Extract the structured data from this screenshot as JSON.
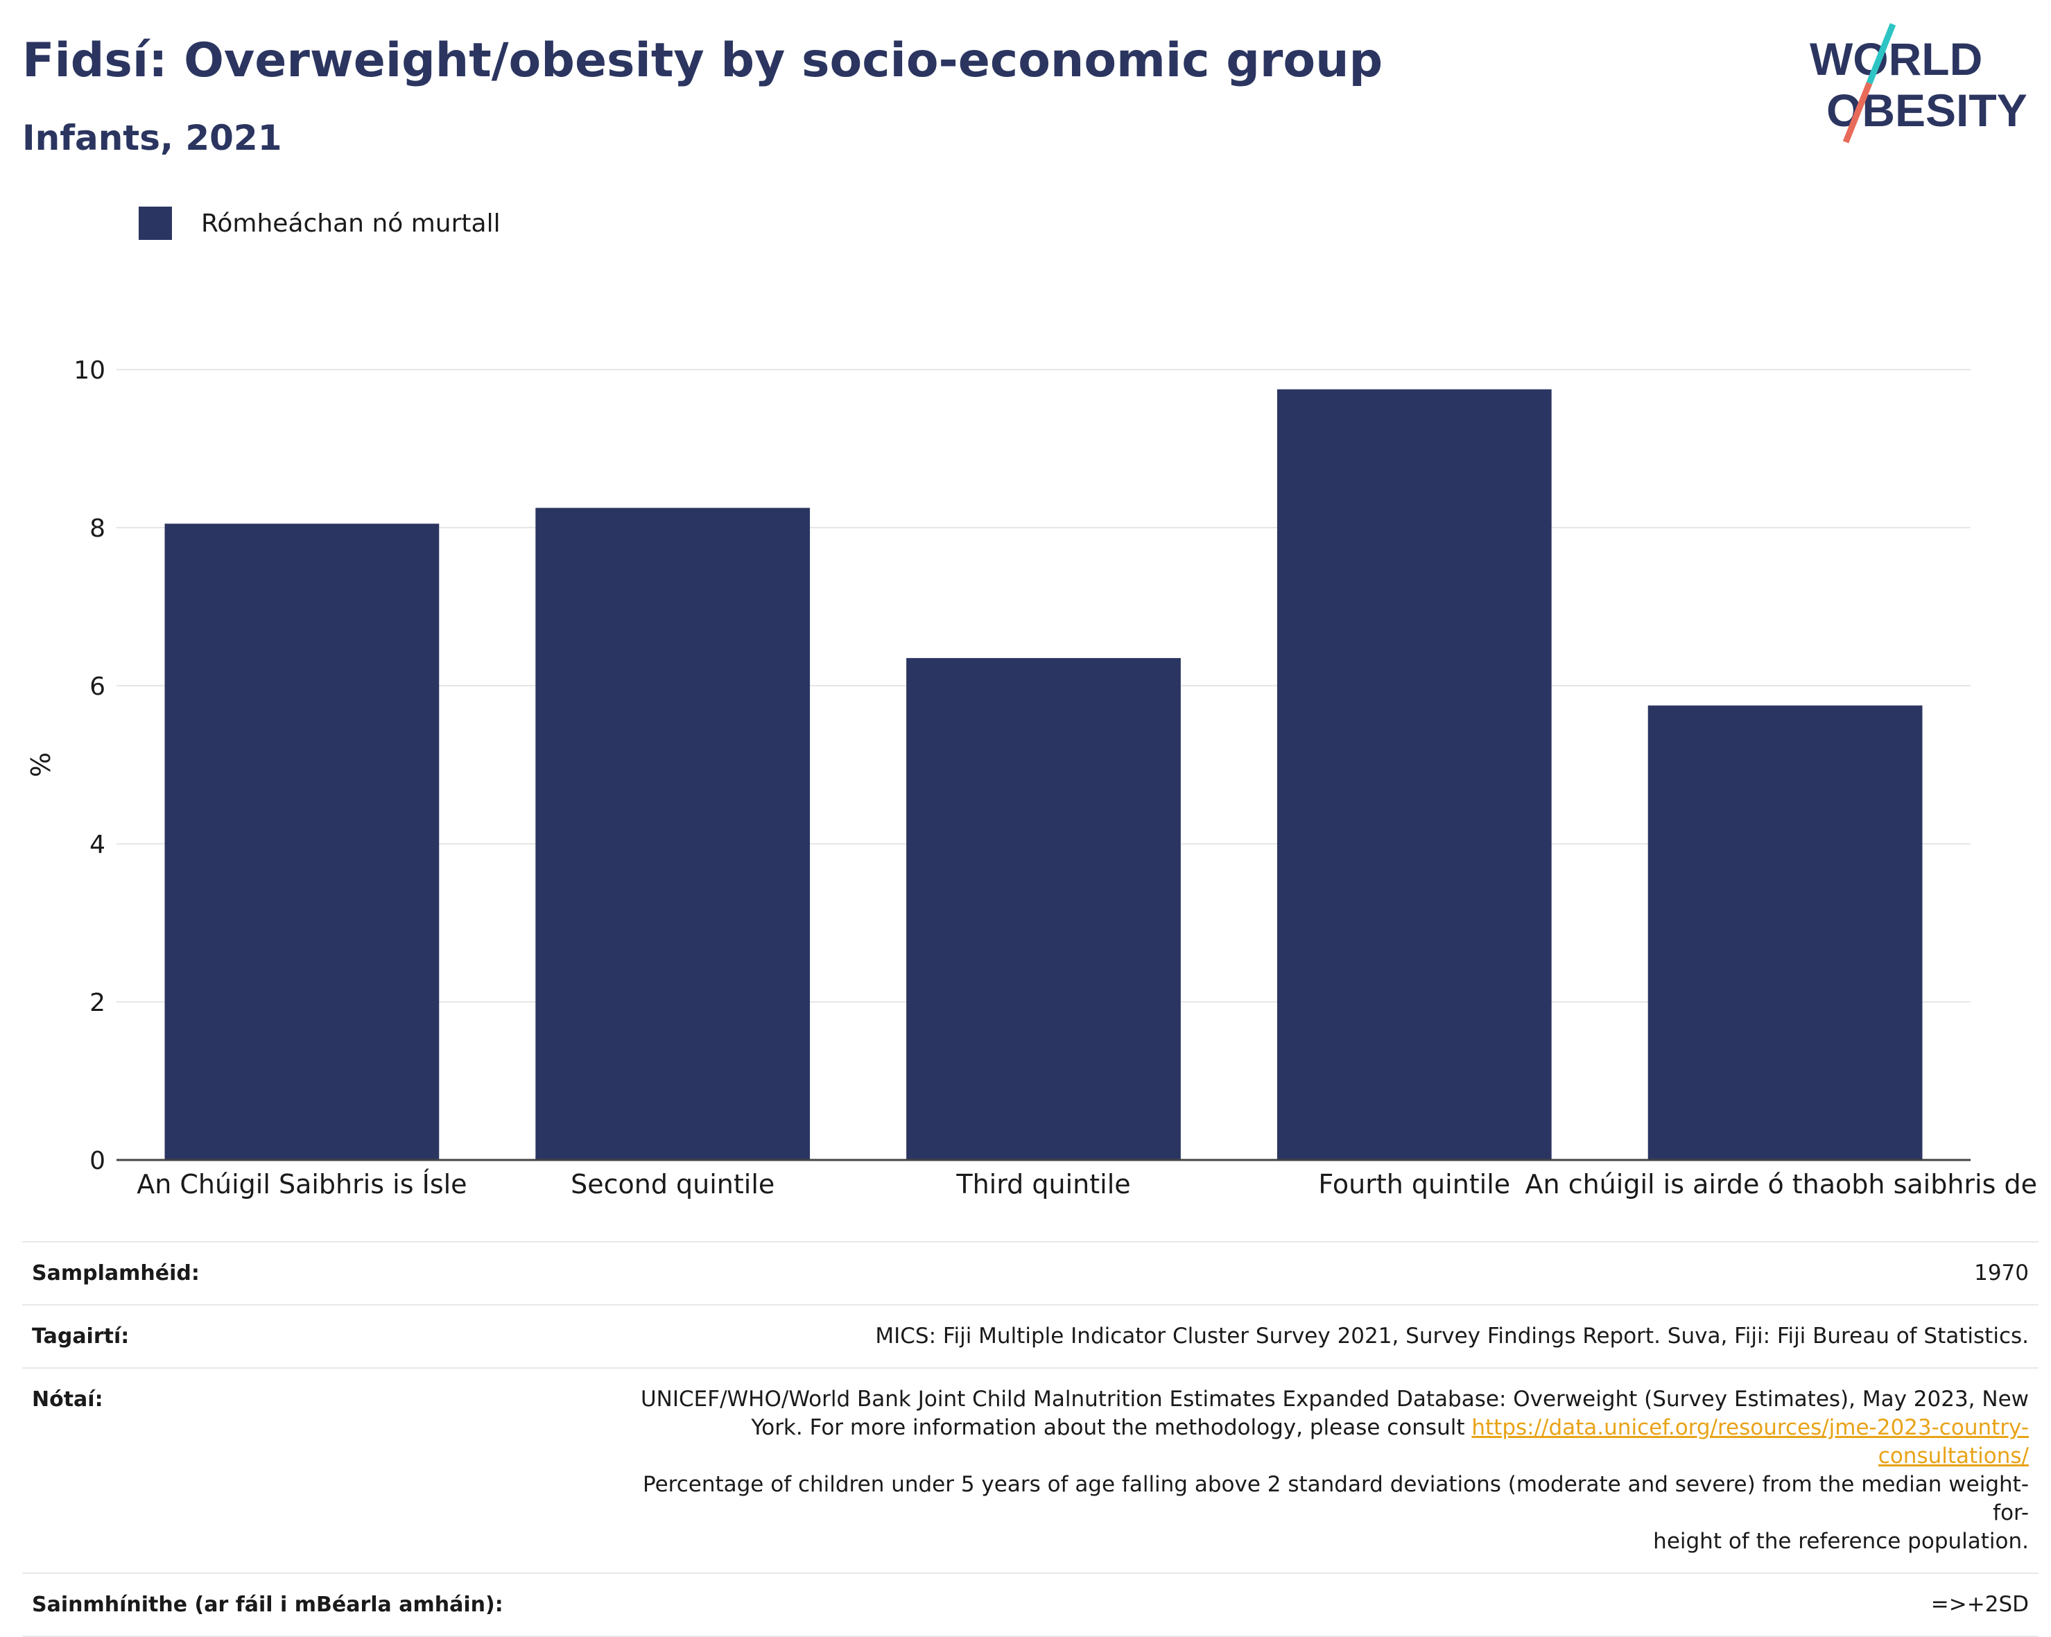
{
  "title": "Fidsí: Overweight/obesity by socio-economic group",
  "subtitle": "Infants, 2021",
  "logo": {
    "line1": "WORLD",
    "line2": "OBESITY"
  },
  "colors": {
    "bar": "#2b3561",
    "title": "#2b3560",
    "link": "#e8a317",
    "logo_teal": "#2ec4c4",
    "logo_coral": "#e86b5a"
  },
  "legend": {
    "label": "Rómheáchan nó murtall"
  },
  "chart_data": {
    "type": "bar",
    "categories": [
      "An Chúigil Saibhris is Ísle",
      "Second quintile",
      "Third quintile",
      "Fourth quintile",
      "An chúigil is airde ó thaobh saibhris de"
    ],
    "series": [
      {
        "name": "Rómheáchan nó murtall",
        "values": [
          8.05,
          8.25,
          6.35,
          9.75,
          5.75
        ]
      }
    ],
    "ylabel": "%",
    "ylim": [
      0,
      10
    ],
    "yticks": [
      0,
      2,
      4,
      6,
      8,
      10
    ],
    "grid": true,
    "legend_position": "top-left"
  },
  "footer": {
    "sample": {
      "label": "Samplamhéid:",
      "value": "1970"
    },
    "references": {
      "label": "Tagairtí:",
      "value": "MICS: Fiji Multiple Indicator Cluster Survey 2021, Survey Findings Report. Suva, Fiji: Fiji Bureau of Statistics."
    },
    "notes": {
      "label": "Nótaí:",
      "line1": "UNICEF/WHO/World Bank Joint Child Malnutrition Estimates Expanded Database: Overweight (Survey Estimates), May 2023, New",
      "line2_prefix": "York. For more information about the methodology, please consult ",
      "link": "https://data.unicef.org/resources/jme-2023-country-consultations/",
      "line3": "Percentage of children under 5 years of age falling above 2 standard deviations (moderate and severe) from the median weight-for-",
      "line4": "height of the reference population."
    },
    "definitions": {
      "label": "Sainmhínithe (ar fáil i mBéarla amháin):",
      "value": "=>+2SD"
    }
  }
}
